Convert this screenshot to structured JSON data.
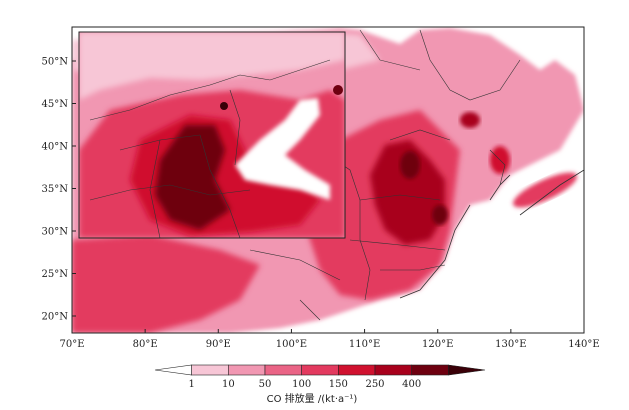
{
  "map": {
    "lon_range": [
      70,
      140
    ],
    "lat_range": [
      18,
      54
    ],
    "lon_ticks": [
      "70°E",
      "80°E",
      "90°E",
      "100°E",
      "110°E",
      "120°E",
      "130°E",
      "140°E"
    ],
    "lat_ticks": [
      "20°N",
      "25°N",
      "30°N",
      "35°N",
      "40°N",
      "45°N",
      "50°N"
    ],
    "inset": true
  },
  "colorbar": {
    "levels": [
      "1",
      "10",
      "50",
      "100",
      "150",
      "250",
      "400"
    ],
    "colors": [
      "#ffffff",
      "#f7c6d6",
      "#f197b2",
      "#ea6486",
      "#e33a5f",
      "#d0112f",
      "#a8001c",
      "#6e0010",
      "#3a0008"
    ],
    "title": "CO 排放量 /(kt·a⁻¹)"
  },
  "colors": {
    "ocean": "#ffffff",
    "land_base": "#f197b2",
    "high": "#d0112f",
    "very_high": "#6e0010",
    "border": "#333333"
  }
}
